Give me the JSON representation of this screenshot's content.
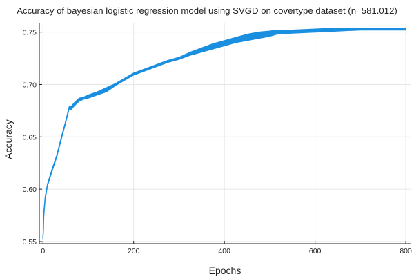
{
  "chart_data": {
    "type": "area",
    "title": "Accuracy of bayesian logistic regression model using SVGD on covertype dataset (n=581.012)",
    "xlabel": "Epochs",
    "ylabel": "Accuracy",
    "xlim": [
      -8,
      812
    ],
    "ylim": [
      0.548,
      0.759
    ],
    "xticks": [
      0,
      200,
      400,
      600,
      800
    ],
    "yticks": [
      0.55,
      0.6,
      0.65,
      0.7,
      0.75
    ],
    "xtick_labels": [
      "0",
      "200",
      "400",
      "600",
      "800"
    ],
    "ytick_labels": [
      "0.55",
      "0.60",
      "0.65",
      "0.70",
      "0.75"
    ],
    "grid": true,
    "legend": "none",
    "series_color": "#1a8fe0",
    "band": {
      "x": [
        0,
        1,
        2,
        5,
        10,
        20,
        30,
        40,
        50,
        55,
        58,
        62,
        70,
        80,
        90,
        100,
        120,
        140,
        160,
        180,
        200,
        225,
        250,
        275,
        300,
        325,
        350,
        375,
        400,
        425,
        450,
        475,
        500,
        515,
        550,
        600,
        650,
        700,
        750,
        800
      ],
      "lower": [
        0.552,
        0.56,
        0.575,
        0.59,
        0.603,
        0.617,
        0.63,
        0.647,
        0.663,
        0.672,
        0.677,
        0.676,
        0.68,
        0.684,
        0.686,
        0.687,
        0.69,
        0.693,
        0.699,
        0.704,
        0.709,
        0.713,
        0.717,
        0.721,
        0.724,
        0.728,
        0.731,
        0.734,
        0.737,
        0.74,
        0.742,
        0.744,
        0.746,
        0.748,
        0.749,
        0.75,
        0.751,
        0.752,
        0.752,
        0.752
      ],
      "upper": [
        0.555,
        0.565,
        0.579,
        0.593,
        0.605,
        0.619,
        0.632,
        0.649,
        0.665,
        0.674,
        0.679,
        0.679,
        0.683,
        0.687,
        0.688,
        0.69,
        0.693,
        0.697,
        0.701,
        0.706,
        0.711,
        0.715,
        0.719,
        0.723,
        0.726,
        0.731,
        0.735,
        0.739,
        0.742,
        0.745,
        0.748,
        0.75,
        0.751,
        0.752,
        0.752,
        0.753,
        0.754,
        0.754,
        0.754,
        0.754
      ]
    }
  }
}
